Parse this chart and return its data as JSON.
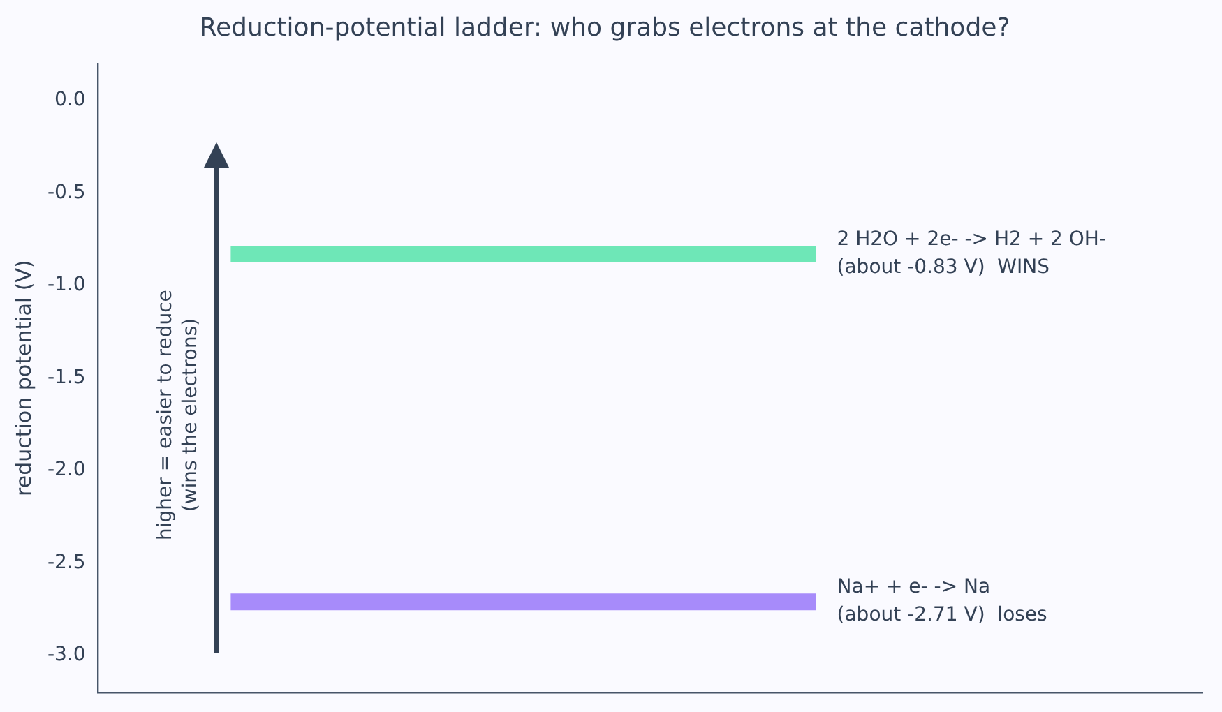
{
  "chart_data": {
    "type": "line",
    "title": "Reduction-potential ladder: who grabs electrons at the cathode?",
    "ylabel": "reduction potential (V)",
    "categories": [
      null
    ],
    "ylim": [
      -3.2,
      0.2
    ],
    "yticks": [
      {
        "value": 0,
        "label": "0.0"
      },
      {
        "value": -0.5,
        "label": "-0.5"
      },
      {
        "value": -1,
        "label": "-1.0"
      },
      {
        "value": -1.5,
        "label": "-1.5"
      },
      {
        "value": -2,
        "label": "-2.0"
      },
      {
        "value": -2.5,
        "label": "-2.5"
      },
      {
        "value": -3,
        "label": "-3.0"
      }
    ],
    "ref_lines": [
      {
        "axis": "y",
        "value": -0.83,
        "label": "2 H2O + 2e- -> H2 + 2 OH-\n(about -0.83 V)  WINS",
        "color": "#6ee7b7"
      },
      {
        "axis": "y",
        "value": -2.71,
        "label": "Na+ + e- -> Na\n(about -2.71 V)  loses",
        "color": "#a78bfa"
      }
    ],
    "annotations": [
      "higher = easier to reduce\n(wins the electrons)"
    ],
    "grid": false,
    "legend": false,
    "tick_labels": "y"
  }
}
